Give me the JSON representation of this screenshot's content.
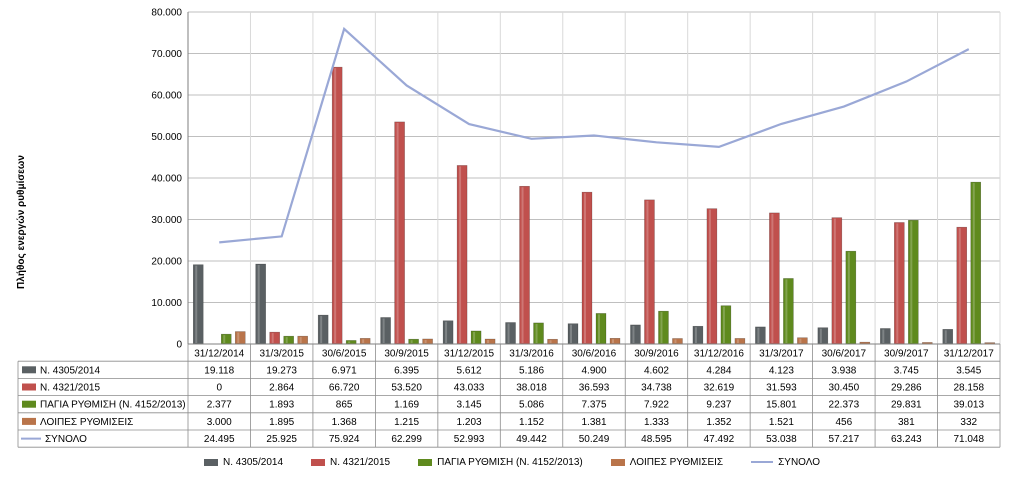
{
  "chart_data": {
    "type": "bar",
    "title": "",
    "xlabel": "",
    "ylabel": "Πλήθος ενεργών ρυθμίσεων",
    "ylim": [
      0,
      80000
    ],
    "yticks": [
      "0",
      "10.000",
      "20.000",
      "30.000",
      "40.000",
      "50.000",
      "60.000",
      "70.000",
      "80.000"
    ],
    "grid": true,
    "legend_position": "bottom",
    "categories": [
      "31/12/2014",
      "31/3/2015",
      "30/6/2015",
      "30/9/2015",
      "31/12/2015",
      "31/3/2016",
      "30/6/2016",
      "30/9/2016",
      "31/12/2016",
      "31/3/2017",
      "30/6/2017",
      "30/9/2017",
      "31/12/2017"
    ],
    "series": [
      {
        "name": "Ν. 4305/2014",
        "type": "bar",
        "color": "#5a6063",
        "values": [
          19118,
          19273,
          6971,
          6395,
          5612,
          5186,
          4900,
          4602,
          4284,
          4123,
          3938,
          3745,
          3545
        ],
        "labels": [
          "19.118",
          "19.273",
          "6.971",
          "6.395",
          "5.612",
          "5.186",
          "4.900",
          "4.602",
          "4.284",
          "4.123",
          "3.938",
          "3.745",
          "3.545"
        ]
      },
      {
        "name": "Ν. 4321/2015",
        "type": "bar",
        "color": "#c0504d",
        "values": [
          0,
          2864,
          66720,
          53520,
          43033,
          38018,
          36593,
          34738,
          32619,
          31593,
          30450,
          29286,
          28158
        ],
        "labels": [
          "0",
          "2.864",
          "66.720",
          "53.520",
          "43.033",
          "38.018",
          "36.593",
          "34.738",
          "32.619",
          "31.593",
          "30.450",
          "29.286",
          "28.158"
        ]
      },
      {
        "name": "ΠΑΓΙΑ ΡΥΘΜΙΣΗ (Ν. 4152/2013)",
        "type": "bar",
        "color": "#5f8a1e",
        "values": [
          2377,
          1893,
          865,
          1169,
          3145,
          5086,
          7375,
          7922,
          9237,
          15801,
          22373,
          29831,
          39013
        ],
        "labels": [
          "2.377",
          "1.893",
          "865",
          "1.169",
          "3.145",
          "5.086",
          "7.375",
          "7.922",
          "9.237",
          "15.801",
          "22.373",
          "29.831",
          "39.013"
        ]
      },
      {
        "name": "ΛΟΙΠΕΣ ΡΥΘΜΙΣΕΙΣ",
        "type": "bar",
        "color": "#b9744a",
        "values": [
          3000,
          1895,
          1368,
          1215,
          1203,
          1152,
          1381,
          1333,
          1352,
          1521,
          456,
          381,
          332
        ],
        "labels": [
          "3.000",
          "1.895",
          "1.368",
          "1.215",
          "1.203",
          "1.152",
          "1.381",
          "1.333",
          "1.352",
          "1.521",
          "456",
          "381",
          "332"
        ]
      },
      {
        "name": "ΣΥΝΟΛΟ",
        "type": "line",
        "color": "#9aa8d6",
        "values": [
          24495,
          25925,
          75924,
          62299,
          52993,
          49442,
          50249,
          48595,
          47492,
          53038,
          57217,
          63243,
          71048
        ],
        "labels": [
          "24.495",
          "25.925",
          "75.924",
          "62.299",
          "52.993",
          "49.442",
          "50.249",
          "48.595",
          "47.492",
          "53.038",
          "57.217",
          "63.243",
          "71.048"
        ]
      }
    ]
  }
}
